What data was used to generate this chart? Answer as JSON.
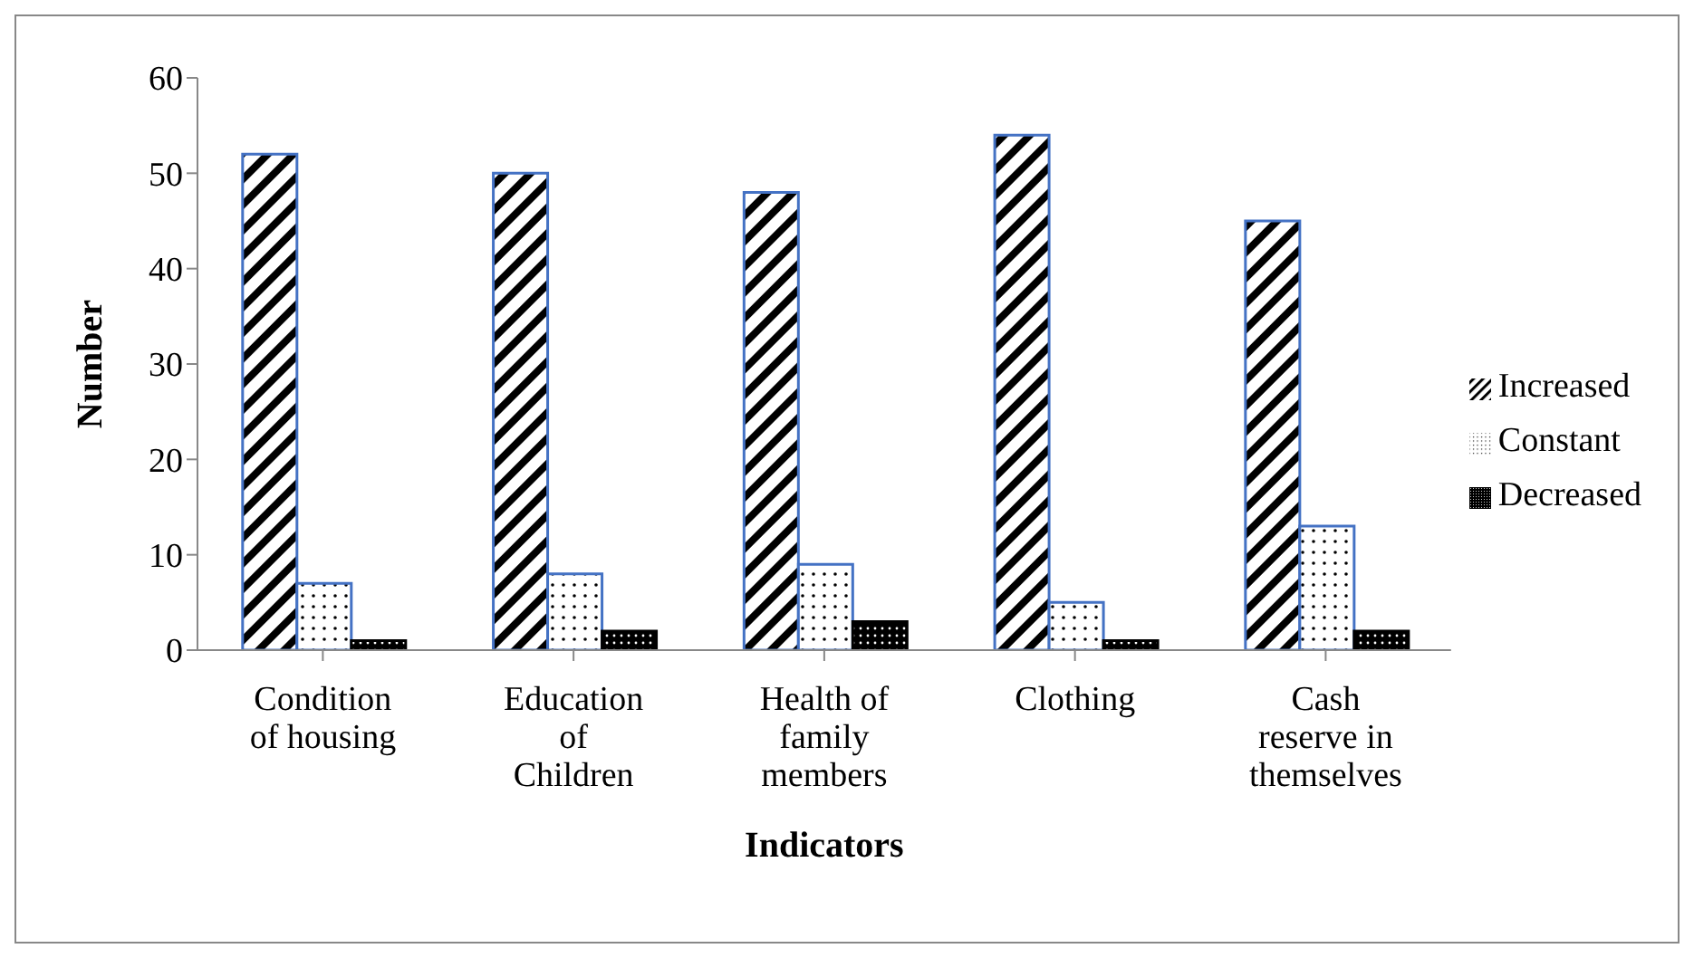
{
  "chart_data": {
    "type": "bar",
    "xlabel": "Indicators",
    "ylabel": "Number",
    "categories": [
      "Condition of housing",
      "Education of Children",
      "Health of family members",
      "Clothing",
      "Cash reserve in themselves"
    ],
    "series": [
      {
        "name": "Increased",
        "color": "#4472c4",
        "values": [
          52,
          50,
          48,
          54,
          45
        ]
      },
      {
        "name": "Constant",
        "color": "#4472c4",
        "values": [
          7,
          8,
          9,
          5,
          13
        ]
      },
      {
        "name": "Decreased",
        "color": "#000000",
        "values": [
          1,
          2,
          3,
          1,
          2
        ]
      }
    ],
    "ylim": [
      0,
      60
    ],
    "yticks": [
      0,
      10,
      20,
      30,
      40,
      50,
      60
    ],
    "legend": "right",
    "grid": false
  }
}
